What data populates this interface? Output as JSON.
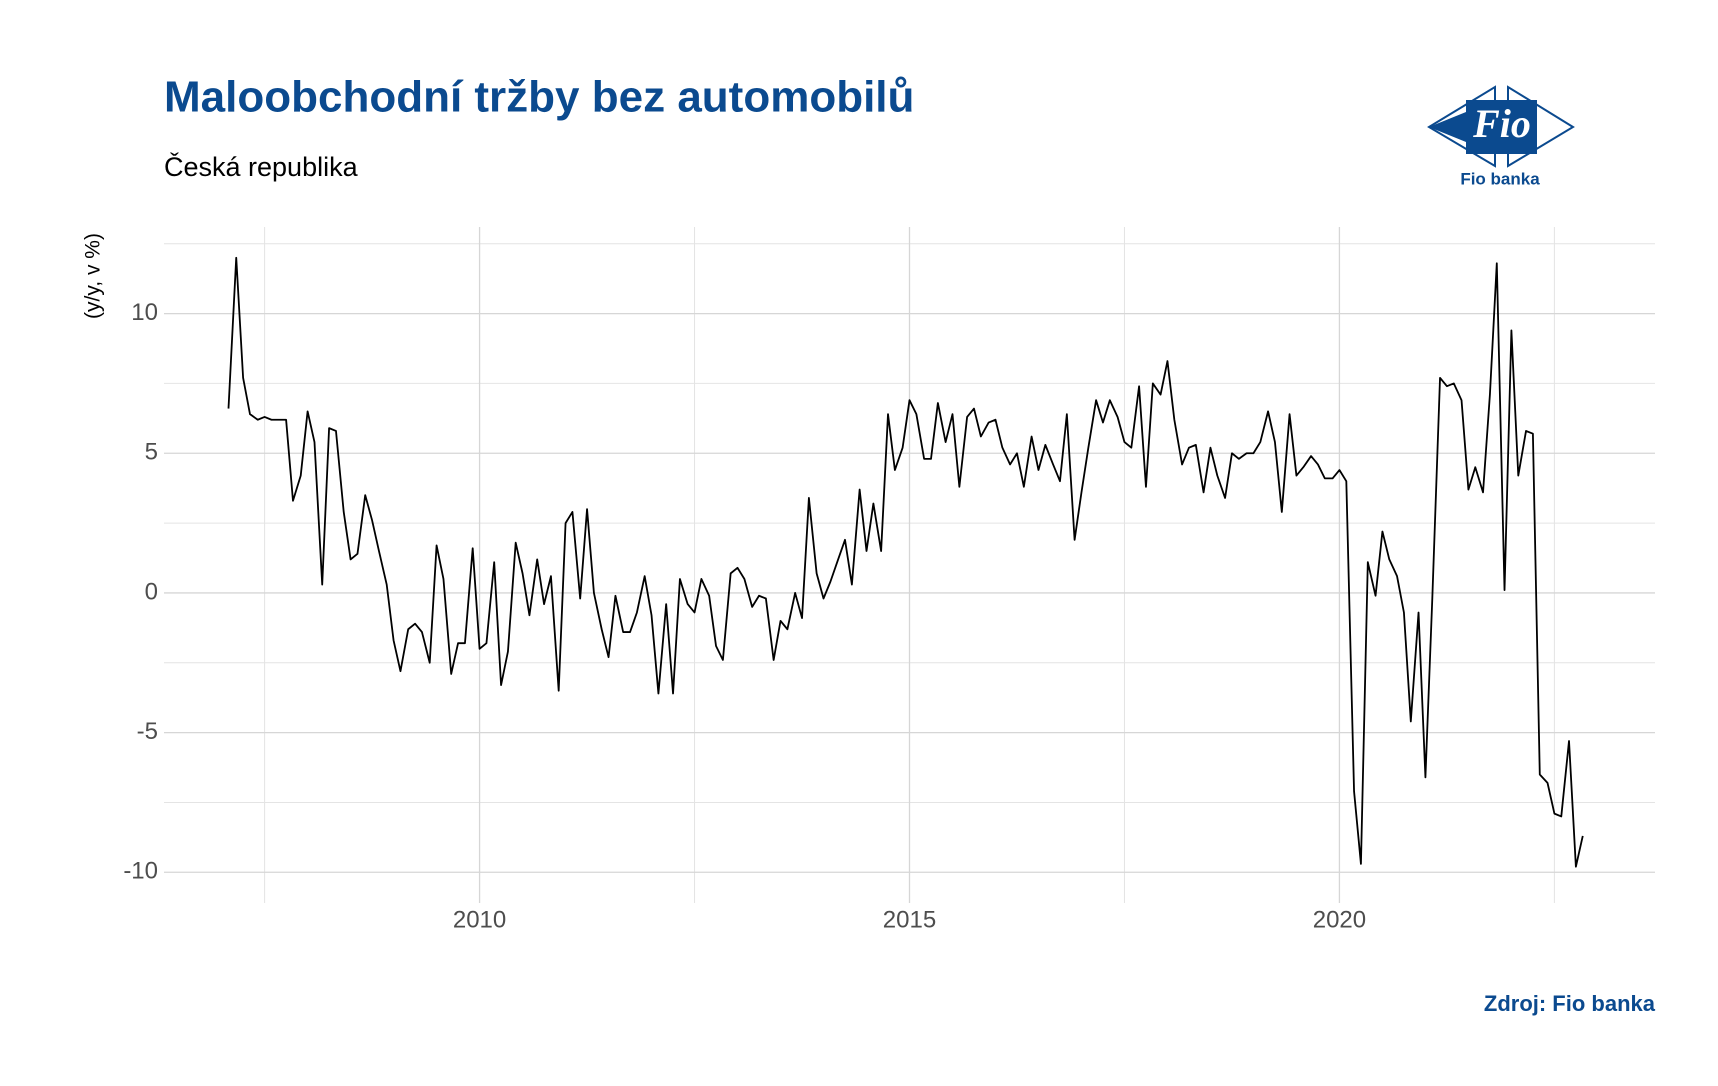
{
  "chart_data": {
    "type": "line",
    "title": "Maloobchodní tržby bez automobilů",
    "subtitle": "Česká republika",
    "y_label": "(y/y, v %)",
    "source": "Zdroj: Fio banka",
    "logo_text": "Fio",
    "logo_caption": "Fio banka",
    "color": "#000000",
    "grid": true,
    "xlim": [
      2006.33,
      2023.67
    ],
    "xticks": [
      2010,
      2015,
      2020
    ],
    "xminor": [
      2007.5,
      2012.5,
      2017.5,
      2022.5
    ],
    "ylim": [
      -11.1,
      13.1
    ],
    "yticks": [
      -10,
      -5,
      0,
      5,
      10
    ],
    "yminor": [
      -7.5,
      -2.5,
      2.5,
      7.5,
      12.5
    ],
    "x": [
      2007.08,
      2007.17,
      2007.25,
      2007.33,
      2007.42,
      2007.5,
      2007.58,
      2007.67,
      2007.75,
      2007.83,
      2007.92,
      2008.0,
      2008.08,
      2008.17,
      2008.25,
      2008.33,
      2008.42,
      2008.5,
      2008.58,
      2008.67,
      2008.75,
      2008.83,
      2008.92,
      2009.0,
      2009.08,
      2009.17,
      2009.25,
      2009.33,
      2009.42,
      2009.5,
      2009.58,
      2009.67,
      2009.75,
      2009.83,
      2009.92,
      2010.0,
      2010.08,
      2010.17,
      2010.25,
      2010.33,
      2010.42,
      2010.5,
      2010.58,
      2010.67,
      2010.75,
      2010.83,
      2010.92,
      2011.0,
      2011.08,
      2011.17,
      2011.25,
      2011.33,
      2011.42,
      2011.5,
      2011.58,
      2011.67,
      2011.75,
      2011.83,
      2011.92,
      2012.0,
      2012.08,
      2012.17,
      2012.25,
      2012.33,
      2012.42,
      2012.5,
      2012.58,
      2012.67,
      2012.75,
      2012.83,
      2012.92,
      2013.0,
      2013.08,
      2013.17,
      2013.25,
      2013.33,
      2013.42,
      2013.5,
      2013.58,
      2013.67,
      2013.75,
      2013.83,
      2013.92,
      2014.0,
      2014.08,
      2014.17,
      2014.25,
      2014.33,
      2014.42,
      2014.5,
      2014.58,
      2014.67,
      2014.75,
      2014.83,
      2014.92,
      2015.0,
      2015.08,
      2015.17,
      2015.25,
      2015.33,
      2015.42,
      2015.5,
      2015.58,
      2015.67,
      2015.75,
      2015.83,
      2015.92,
      2016.0,
      2016.08,
      2016.17,
      2016.25,
      2016.33,
      2016.42,
      2016.5,
      2016.58,
      2016.67,
      2016.75,
      2016.83,
      2016.92,
      2017.0,
      2017.08,
      2017.17,
      2017.25,
      2017.33,
      2017.42,
      2017.5,
      2017.58,
      2017.67,
      2017.75,
      2017.83,
      2017.92,
      2018.0,
      2018.08,
      2018.17,
      2018.25,
      2018.33,
      2018.42,
      2018.5,
      2018.58,
      2018.67,
      2018.75,
      2018.83,
      2018.92,
      2019.0,
      2019.08,
      2019.17,
      2019.25,
      2019.33,
      2019.42,
      2019.5,
      2019.58,
      2019.67,
      2019.75,
      2019.83,
      2019.92,
      2020.0,
      2020.08,
      2020.17,
      2020.25,
      2020.33,
      2020.42,
      2020.5,
      2020.58,
      2020.67,
      2020.75,
      2020.83,
      2020.92,
      2021.0,
      2021.08,
      2021.17,
      2021.25,
      2021.33,
      2021.42,
      2021.5,
      2021.58,
      2021.67,
      2021.75,
      2021.83,
      2021.92,
      2022.0,
      2022.08,
      2022.17,
      2022.25,
      2022.33,
      2022.42,
      2022.5,
      2022.58,
      2022.67,
      2022.75,
      2022.83
    ],
    "values": [
      6.6,
      12.0,
      7.7,
      6.4,
      6.2,
      6.3,
      6.2,
      6.2,
      6.2,
      3.3,
      4.2,
      6.5,
      5.4,
      0.3,
      5.9,
      5.8,
      2.9,
      1.2,
      1.4,
      3.5,
      2.6,
      1.5,
      0.3,
      -1.7,
      -2.8,
      -1.3,
      -1.1,
      -1.4,
      -2.5,
      1.7,
      0.5,
      -2.9,
      -1.8,
      -1.8,
      1.6,
      -2.0,
      -1.8,
      1.1,
      -3.3,
      -2.1,
      1.8,
      0.7,
      -0.8,
      1.2,
      -0.4,
      0.6,
      -3.5,
      2.5,
      2.9,
      -0.2,
      3.0,
      0.0,
      -1.3,
      -2.3,
      -0.1,
      -1.4,
      -1.4,
      -0.7,
      0.6,
      -0.8,
      -3.6,
      -0.4,
      -3.6,
      0.5,
      -0.4,
      -0.7,
      0.5,
      -0.1,
      -1.9,
      -2.4,
      0.7,
      0.9,
      0.5,
      -0.5,
      -0.1,
      -0.2,
      -2.4,
      -1.0,
      -1.3,
      0.0,
      -0.9,
      3.4,
      0.7,
      -0.2,
      0.4,
      1.2,
      1.9,
      0.3,
      3.7,
      1.5,
      3.2,
      1.5,
      6.4,
      4.4,
      5.2,
      6.9,
      6.4,
      4.8,
      4.8,
      6.8,
      5.4,
      6.4,
      3.8,
      6.3,
      6.6,
      5.6,
      6.1,
      6.2,
      5.2,
      4.6,
      5.0,
      3.8,
      5.6,
      4.4,
      5.3,
      4.6,
      4.0,
      6.4,
      1.9,
      3.6,
      5.2,
      6.9,
      6.1,
      6.9,
      6.3,
      5.4,
      5.2,
      7.4,
      3.8,
      7.5,
      7.1,
      8.3,
      6.2,
      4.6,
      5.2,
      5.3,
      3.6,
      5.2,
      4.2,
      3.4,
      5.0,
      4.8,
      5.0,
      5.0,
      5.4,
      6.5,
      5.4,
      2.9,
      6.4,
      4.2,
      4.5,
      4.9,
      4.6,
      4.1,
      4.1,
      4.4,
      4.0,
      -7.1,
      -9.7,
      1.1,
      -0.1,
      2.2,
      1.2,
      0.6,
      -0.7,
      -4.6,
      -0.7,
      -6.6,
      -0.2,
      7.7,
      7.4,
      7.5,
      6.9,
      3.7,
      4.5,
      3.6,
      7.1,
      11.8,
      0.1,
      9.4,
      4.2,
      5.8,
      5.7,
      -6.5,
      -6.8,
      -7.9,
      -8.0,
      -5.3,
      -9.8,
      -8.7
    ]
  }
}
